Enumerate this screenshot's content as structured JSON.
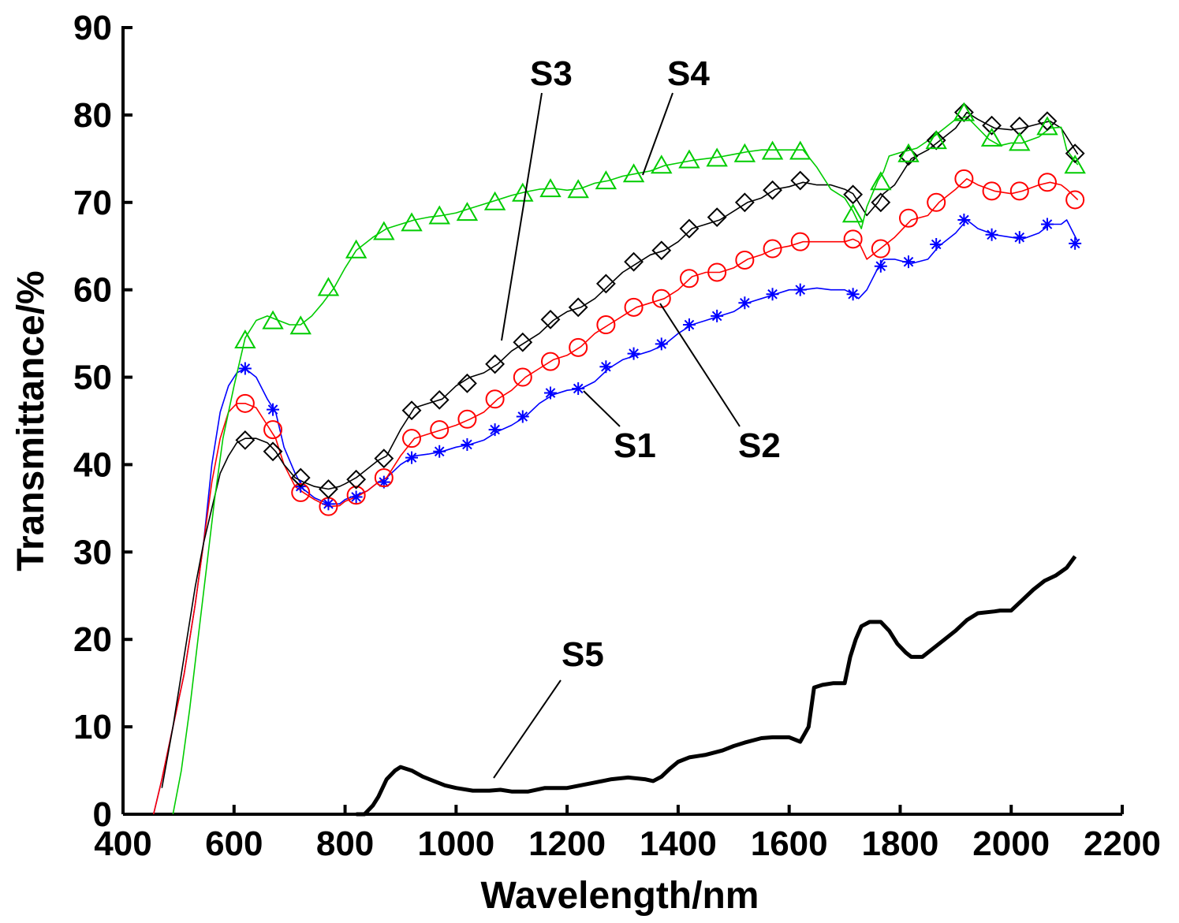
{
  "chart_data": {
    "type": "line",
    "title": "",
    "xlabel": "Wavelength/nm",
    "ylabel": "Transmittance/%",
    "xlim": [
      400,
      2200
    ],
    "ylim": [
      0,
      90
    ],
    "xticks": [
      400,
      600,
      800,
      1000,
      1200,
      1400,
      1600,
      1800,
      2000,
      2200
    ],
    "yticks": [
      0,
      10,
      20,
      30,
      40,
      50,
      60,
      70,
      80,
      90
    ],
    "grid": false,
    "legend": "none (series labelled directly with leader lines)",
    "series": [
      {
        "name": "S1",
        "color": "#0000ff",
        "marker": "asterisk",
        "x": [
          455,
          470,
          490,
          510,
          530,
          545,
          560,
          575,
          590,
          605,
          620,
          640,
          660,
          675,
          690,
          710,
          725,
          745,
          770,
          790,
          800,
          820,
          840,
          860,
          875,
          900,
          925,
          950,
          975,
          1000,
          1025,
          1050,
          1075,
          1100,
          1125,
          1150,
          1175,
          1200,
          1225,
          1250,
          1275,
          1300,
          1325,
          1350,
          1375,
          1400,
          1425,
          1450,
          1475,
          1500,
          1525,
          1550,
          1575,
          1600,
          1625,
          1650,
          1675,
          1700,
          1715,
          1725,
          1740,
          1760,
          1770,
          1790,
          1820,
          1850,
          1870,
          1900,
          1920,
          1940,
          1970,
          2000,
          2020,
          2050,
          2070,
          2090,
          2100,
          2120
        ],
        "y": [
          0,
          4,
          10,
          16,
          24,
          31,
          40,
          46,
          49,
          50.5,
          51,
          50,
          47.5,
          46,
          42,
          39,
          37.2,
          36.2,
          35.5,
          35.5,
          36,
          36.5,
          37,
          38,
          38.5,
          40,
          41,
          41.2,
          41.5,
          42,
          42.3,
          42.8,
          43.8,
          44.5,
          45.5,
          47,
          48,
          48.5,
          48.7,
          49.5,
          51,
          52,
          52.5,
          53,
          53.7,
          55,
          56,
          56.5,
          57,
          57.5,
          58.5,
          59,
          59.5,
          60,
          60,
          60.2,
          60,
          60,
          59.5,
          59,
          60,
          62.5,
          63.5,
          63.5,
          63,
          63.5,
          65,
          66.5,
          68,
          67,
          66.3,
          66,
          65.8,
          66.5,
          67.5,
          67.5,
          68,
          65.5
        ],
        "marker_x": [
          620,
          670,
          720,
          770,
          820,
          870,
          920,
          970,
          1020,
          1070,
          1120,
          1170,
          1220,
          1270,
          1320,
          1370,
          1420,
          1470,
          1520,
          1570,
          1620,
          1715,
          1765,
          1815,
          1865,
          1915,
          1965,
          2015,
          2065,
          2115
        ],
        "marker_y": [
          51,
          46.3,
          37.5,
          35.5,
          36.3,
          38,
          40.8,
          41.5,
          42.3,
          44,
          45.5,
          48.2,
          48.7,
          51.2,
          52.7,
          53.8,
          56,
          57,
          58.5,
          59.5,
          60,
          59.5,
          62.7,
          63.2,
          65.2,
          68,
          66.3,
          66,
          67.5,
          65.3
        ]
      },
      {
        "name": "S2",
        "color": "#ff0000",
        "marker": "circle",
        "x": [
          455,
          470,
          490,
          510,
          530,
          545,
          560,
          575,
          590,
          605,
          620,
          640,
          660,
          675,
          690,
          710,
          725,
          745,
          770,
          790,
          800,
          820,
          840,
          860,
          875,
          900,
          925,
          950,
          975,
          1000,
          1025,
          1050,
          1075,
          1100,
          1125,
          1150,
          1175,
          1200,
          1225,
          1250,
          1275,
          1300,
          1325,
          1350,
          1375,
          1400,
          1425,
          1450,
          1475,
          1500,
          1525,
          1550,
          1575,
          1600,
          1625,
          1650,
          1675,
          1700,
          1715,
          1725,
          1740,
          1760,
          1770,
          1790,
          1820,
          1850,
          1870,
          1900,
          1920,
          1940,
          1970,
          2000,
          2020,
          2050,
          2070,
          2090,
          2100,
          2120
        ],
        "y": [
          0,
          4,
          10,
          16,
          24,
          31,
          38,
          43,
          46,
          47,
          47,
          46.5,
          44.5,
          43,
          40,
          37.5,
          36.8,
          36,
          35.2,
          35.3,
          35.8,
          36.3,
          37,
          38,
          38.5,
          41,
          43,
          43.5,
          44,
          44.5,
          45.2,
          46,
          47.5,
          48.5,
          50,
          51,
          52,
          52.5,
          53.5,
          55,
          56,
          57,
          58,
          58.5,
          59,
          60,
          61.5,
          62,
          62,
          62.5,
          63.5,
          64,
          64.7,
          65,
          65.5,
          65.5,
          65.5,
          65.5,
          65.8,
          65.5,
          63.5,
          64.5,
          65,
          66,
          68,
          68.5,
          70,
          71.5,
          72.7,
          72,
          71.3,
          71,
          71.3,
          72,
          72.3,
          72,
          71.5,
          70.3
        ],
        "marker_x": [
          620,
          670,
          720,
          770,
          820,
          870,
          920,
          970,
          1020,
          1070,
          1120,
          1170,
          1220,
          1270,
          1320,
          1370,
          1420,
          1470,
          1520,
          1570,
          1620,
          1715,
          1765,
          1815,
          1865,
          1915,
          1965,
          2015,
          2065,
          2115
        ],
        "marker_y": [
          47,
          44,
          36.8,
          35.2,
          36.5,
          38.5,
          43,
          44,
          45.2,
          47.5,
          50,
          51.8,
          53.4,
          56,
          58,
          59,
          61.3,
          62,
          63.4,
          64.7,
          65.5,
          65.8,
          64.7,
          68.2,
          70,
          72.7,
          71.3,
          71.3,
          72.3,
          70.3
        ]
      },
      {
        "name": "S3",
        "color": "#000000",
        "marker": "diamond",
        "x": [
          470,
          490,
          510,
          530,
          545,
          560,
          575,
          590,
          605,
          620,
          640,
          660,
          675,
          690,
          710,
          725,
          745,
          770,
          790,
          800,
          820,
          840,
          860,
          875,
          900,
          925,
          950,
          975,
          1000,
          1025,
          1050,
          1075,
          1100,
          1125,
          1150,
          1175,
          1200,
          1225,
          1250,
          1275,
          1300,
          1325,
          1350,
          1375,
          1400,
          1425,
          1450,
          1475,
          1500,
          1525,
          1550,
          1575,
          1600,
          1625,
          1650,
          1675,
          1700,
          1715,
          1725,
          1740,
          1760,
          1770,
          1790,
          1820,
          1850,
          1870,
          1900,
          1920,
          1940,
          1970,
          2000,
          2020,
          2050,
          2070,
          2090,
          2100,
          2120
        ],
        "y": [
          3,
          10,
          18,
          26,
          31,
          35,
          39,
          41,
          42.5,
          43,
          43,
          42.5,
          41.5,
          40,
          38.5,
          38,
          37.5,
          37.2,
          37.5,
          37.8,
          38.5,
          39.5,
          40.5,
          41,
          44,
          46.5,
          47,
          47.5,
          49,
          50,
          50.5,
          51.5,
          53,
          54,
          55,
          56.5,
          57.5,
          58,
          59,
          60.5,
          62,
          63,
          64,
          64.5,
          65.5,
          67,
          67.5,
          68,
          69,
          70,
          70.5,
          71.5,
          71.8,
          72.3,
          72,
          72,
          71.5,
          71,
          70,
          68.5,
          70,
          71,
          72,
          75,
          76,
          77,
          78.5,
          80.3,
          79.5,
          78.5,
          78.3,
          78.5,
          79,
          79.3,
          78.5,
          77.5,
          75.5
        ],
        "marker_x": [
          620,
          670,
          720,
          770,
          820,
          870,
          920,
          970,
          1020,
          1070,
          1120,
          1170,
          1220,
          1270,
          1320,
          1370,
          1420,
          1470,
          1520,
          1570,
          1620,
          1715,
          1765,
          1815,
          1865,
          1915,
          1965,
          2015,
          2065,
          2115
        ],
        "marker_y": [
          42.8,
          41.5,
          38.5,
          37.2,
          38.3,
          40.7,
          46.2,
          47.4,
          49.3,
          51.5,
          54,
          56.6,
          58,
          60.7,
          63.2,
          64.5,
          67,
          68.3,
          70,
          71.4,
          72.5,
          70.9,
          70,
          75.3,
          77.1,
          80.3,
          78.8,
          78.7,
          79.3,
          75.6
        ]
      },
      {
        "name": "S4",
        "color": "#00cc00",
        "marker": "triangle",
        "x": [
          490,
          505,
          520,
          535,
          550,
          565,
          580,
          600,
          620,
          640,
          660,
          680,
          700,
          720,
          740,
          760,
          780,
          800,
          820,
          850,
          875,
          900,
          925,
          950,
          975,
          1000,
          1025,
          1050,
          1075,
          1100,
          1125,
          1150,
          1175,
          1200,
          1225,
          1250,
          1275,
          1300,
          1325,
          1350,
          1375,
          1400,
          1425,
          1450,
          1475,
          1500,
          1525,
          1550,
          1575,
          1600,
          1625,
          1650,
          1675,
          1700,
          1715,
          1730,
          1740,
          1760,
          1770,
          1780,
          1800,
          1830,
          1860,
          1880,
          1900,
          1920,
          1940,
          1960,
          1980,
          2000,
          2020,
          2050,
          2070,
          2090,
          2100,
          2120
        ],
        "y": [
          0,
          5,
          12,
          20,
          28,
          36,
          43,
          49,
          54.5,
          56.5,
          57,
          56.5,
          56,
          56,
          57,
          58.5,
          60.2,
          62.5,
          64.5,
          66,
          67,
          67.5,
          68,
          68.3,
          68.5,
          68.8,
          69.3,
          69.8,
          70.3,
          70.8,
          71.2,
          71.5,
          71.6,
          71.4,
          71.6,
          72.2,
          72.5,
          73,
          73.3,
          73.6,
          74.2,
          74.5,
          74.8,
          75,
          75.2,
          75.5,
          75.8,
          76,
          76,
          76,
          76,
          74,
          71.5,
          70.5,
          69,
          67,
          69.5,
          72.5,
          73.5,
          75.3,
          75.7,
          76.2,
          77.5,
          78.5,
          79.5,
          79.8,
          78.5,
          77.2,
          76.5,
          76.8,
          76.8,
          77.5,
          78.5,
          78.6,
          76,
          74.3
        ],
        "marker_x": [
          620,
          670,
          720,
          770,
          820,
          870,
          920,
          970,
          1020,
          1070,
          1120,
          1170,
          1220,
          1270,
          1320,
          1370,
          1420,
          1470,
          1520,
          1570,
          1620,
          1715,
          1765,
          1815,
          1865,
          1915,
          1965,
          2015,
          2065,
          2115
        ],
        "marker_y": [
          54.2,
          56.4,
          55.8,
          60.2,
          64.5,
          66.6,
          67.6,
          68.4,
          68.8,
          70,
          71,
          71.5,
          71.4,
          72.4,
          73.2,
          74.2,
          74.8,
          75,
          75.5,
          75.8,
          75.8,
          68.6,
          72.3,
          75.5,
          77,
          80.2,
          77.3,
          76.8,
          78.6,
          74.2
        ]
      },
      {
        "name": "S5",
        "color": "#000000",
        "marker": "none",
        "x": [
          820,
          835,
          850,
          860,
          875,
          890,
          900,
          920,
          940,
          960,
          980,
          1000,
          1030,
          1060,
          1080,
          1100,
          1130,
          1160,
          1200,
          1240,
          1280,
          1310,
          1340,
          1355,
          1370,
          1385,
          1400,
          1420,
          1450,
          1480,
          1500,
          1520,
          1550,
          1570,
          1580,
          1600,
          1620,
          1635,
          1645,
          1660,
          1680,
          1700,
          1710,
          1720,
          1730,
          1745,
          1765,
          1780,
          1795,
          1810,
          1820,
          1840,
          1860,
          1880,
          1900,
          1920,
          1940,
          1970,
          1980,
          2000,
          2020,
          2040,
          2060,
          2080,
          2100,
          2115
        ],
        "y": [
          0,
          0,
          1,
          2,
          4,
          5,
          5.4,
          5,
          4.3,
          3.8,
          3.3,
          3,
          2.7,
          2.7,
          2.8,
          2.6,
          2.6,
          3,
          3,
          3.5,
          4,
          4.2,
          4,
          3.8,
          4.3,
          5.2,
          6,
          6.5,
          6.8,
          7.3,
          7.8,
          8.2,
          8.7,
          8.8,
          8.8,
          8.8,
          8.3,
          10,
          14.5,
          14.8,
          15,
          15,
          18,
          20,
          21.5,
          22,
          22,
          21,
          19.5,
          18.5,
          18,
          18,
          19,
          20,
          21,
          22.2,
          23,
          23.2,
          23.3,
          23.3,
          24.5,
          25.7,
          26.7,
          27.3,
          28.2,
          29.5
        ]
      }
    ],
    "annotations": [
      "S1",
      "S2",
      "S3",
      "S4",
      "S5"
    ]
  }
}
